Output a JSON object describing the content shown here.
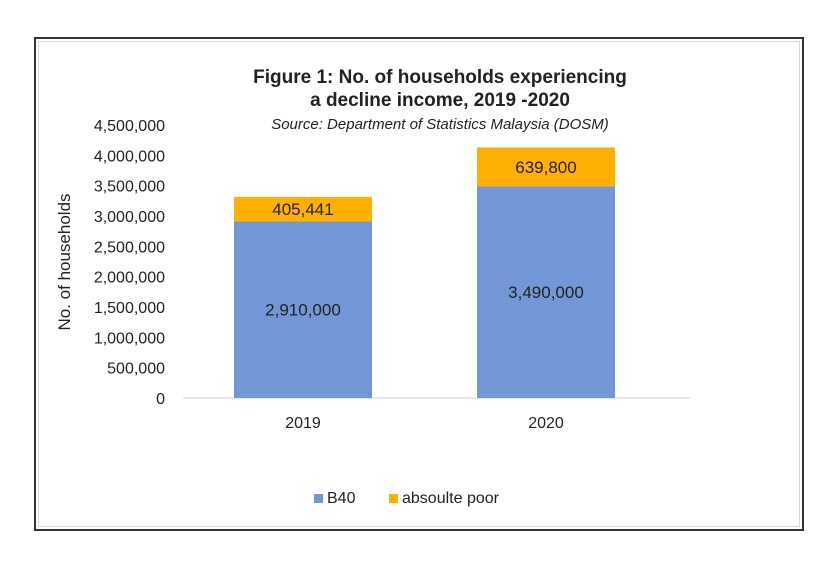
{
  "chart_data": {
    "type": "bar",
    "stacked": true,
    "title": "Figure 1: No. of households  experiencing",
    "title_line2": "a decline  income, 2019 -2020",
    "subtitle": "Source: Department of Statistics Malaysia (DOSM)",
    "xlabel": "",
    "ylabel": "No. of households",
    "categories": [
      "2019",
      "2020"
    ],
    "series": [
      {
        "name": "B40",
        "values": [
          2910000,
          3490000
        ],
        "labels": [
          "2,910,000",
          "3,490,000"
        ],
        "color": "#7397d6"
      },
      {
        "name": "absoulte poor",
        "values": [
          405441,
          639800
        ],
        "labels": [
          "405,441",
          "639,800"
        ],
        "color": "#ffb000"
      }
    ],
    "ylim": [
      0,
      4500000
    ],
    "yticks": [
      0,
      500000,
      1000000,
      1500000,
      2000000,
      2500000,
      3000000,
      3500000,
      4000000,
      4500000
    ],
    "ytick_labels": [
      "0",
      "500,000",
      "1,000,000",
      "1,500,000",
      "2,000,000",
      "2,500,000",
      "3,000,000",
      "3,500,000",
      "4,000,000",
      "4,500,000"
    ],
    "grid": false,
    "legend_position": "bottom"
  }
}
